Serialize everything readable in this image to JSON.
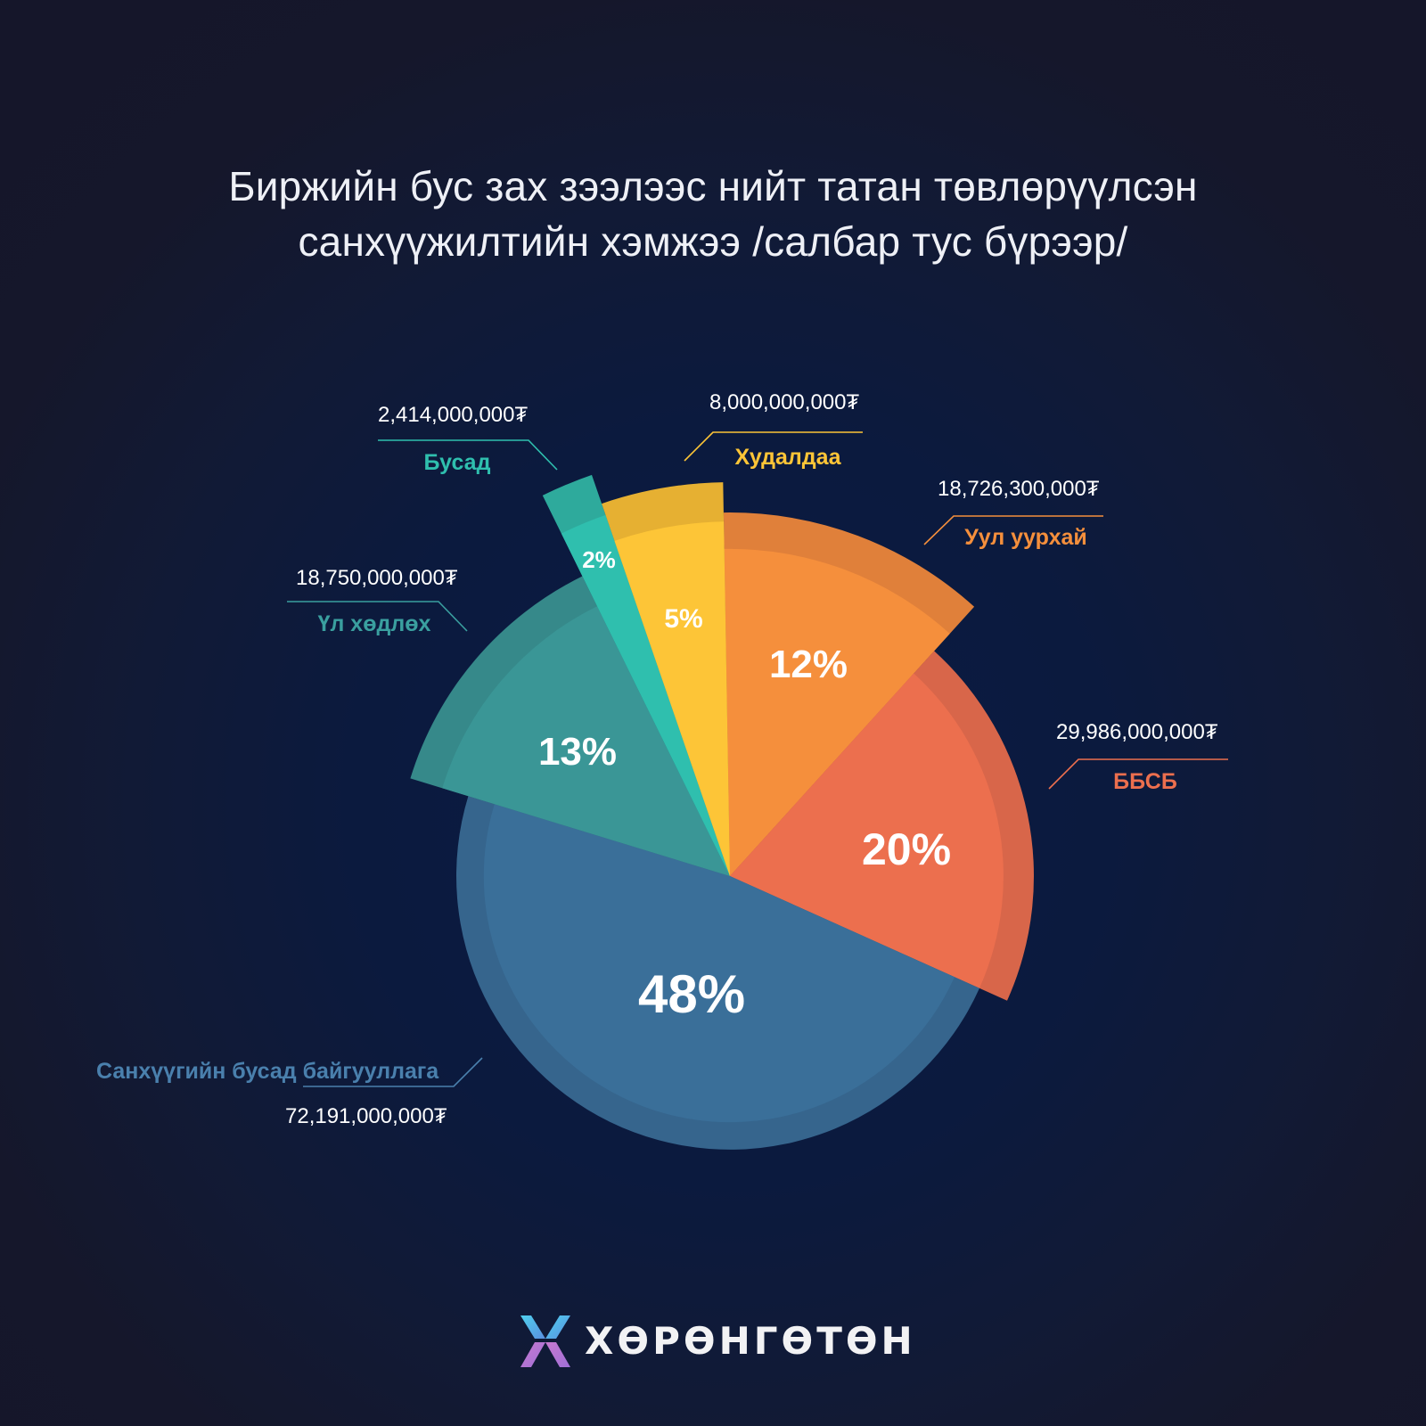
{
  "title": {
    "line1": "Биржийн бус зах зээлээс нийт татан төвлөрүүлсэн",
    "line2": "санхүүжилтийн хэмжээ /салбар тус бүрээр/"
  },
  "logo": {
    "icon": "x-butterfly-logo-icon",
    "text": "ХӨРӨНГӨТӨН"
  },
  "colors": {
    "background": "#15172b",
    "title_text": "#eef0f6"
  },
  "chart_data": {
    "type": "pie",
    "title": "Биржийн бус зах зээлээс нийт татан төвлөрүүлсэн санхүүжилтийн хэмжээ /салбар тус бүрээр/",
    "variant": "variable-radius pie (each slice extends to a different radius)",
    "currency": "₮",
    "slices": [
      {
        "label": "Уул уурхай",
        "value": 18726300000,
        "value_text": "18,726,300,000₮",
        "percent": 12,
        "percent_text": "12%",
        "color": "#f58f3c",
        "rim_color": "#e0803a",
        "radius": 408
      },
      {
        "label": "ББСБ",
        "value": 29986000000,
        "value_text": "29,986,000,000₮",
        "percent": 20,
        "percent_text": "20%",
        "color": "#ec6f4e",
        "rim_color": "#d8664a",
        "radius": 341
      },
      {
        "label": "Санхүүгийн бусад байгууллага",
        "value": 72191000000,
        "value_text": "72,191,000,000₮",
        "percent": 48,
        "percent_text": "48%",
        "color": "#3a6f99",
        "rim_color": "#36658d",
        "radius": 307
      },
      {
        "label": "Үл хөдлөх",
        "value": 18750000000,
        "value_text": "18,750,000,000₮",
        "percent": 13,
        "percent_text": "13%",
        "color": "#3a9696",
        "rim_color": "#36898a",
        "radius": 375
      },
      {
        "label": "Бусад",
        "value": 2414000000,
        "value_text": "2,414,000,000₮",
        "percent": 2,
        "percent_text": "2%",
        "color": "#2fbfae",
        "rim_color": "#2eaa9c",
        "radius": 476
      },
      {
        "label": "Худалдаа",
        "value": 8000000000,
        "value_text": "8,000,000,000₮",
        "percent": 5,
        "percent_text": "5%",
        "color": "#fdc537",
        "rim_color": "#e6b032",
        "radius": 442
      }
    ],
    "legend_position": "callouts around pie"
  }
}
